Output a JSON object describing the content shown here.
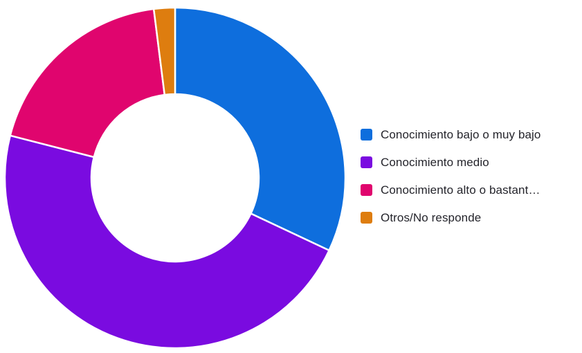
{
  "chart_data": {
    "type": "pie",
    "subtype": "donut",
    "start_angle_deg": 0,
    "direction": "clockwise",
    "inner_radius_ratio": 0.49,
    "background_color": "#FFFFFF",
    "segment_gap_color": "#FFFFFF",
    "legend_position": "right",
    "legend_text_color": "#24242B",
    "categories": [
      "Conocimiento bajo o muy bajo",
      "Conocimiento medio",
      "Conocimiento alto o bastant…",
      "Otros/No responde"
    ],
    "values": [
      32,
      47,
      19,
      2
    ],
    "unit": "percent-estimated",
    "colors": [
      "#0E6EDD",
      "#7A0BE0",
      "#E0056E",
      "#DE7D0F"
    ]
  }
}
